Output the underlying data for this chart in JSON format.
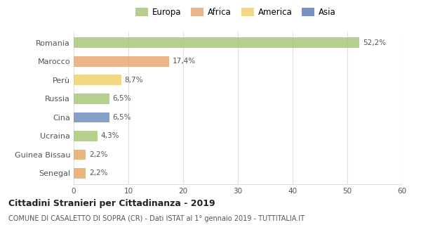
{
  "categories": [
    "Romania",
    "Marocco",
    "Perù",
    "Russia",
    "Cina",
    "Ucraina",
    "Guinea Bissau",
    "Senegal"
  ],
  "values": [
    52.2,
    17.4,
    8.7,
    6.5,
    6.5,
    4.3,
    2.2,
    2.2
  ],
  "labels": [
    "52,2%",
    "17,4%",
    "8,7%",
    "6,5%",
    "6,5%",
    "4,3%",
    "2,2%",
    "2,2%"
  ],
  "bar_colors": [
    "#a8c87a",
    "#e8a878",
    "#f0d070",
    "#a8c87a",
    "#7090c0",
    "#a8c87a",
    "#e8a868",
    "#e8a868"
  ],
  "legend": [
    {
      "label": "Europa",
      "color": "#a8c87a"
    },
    {
      "label": "Africa",
      "color": "#e8a878"
    },
    {
      "label": "America",
      "color": "#f0d070"
    },
    {
      "label": "Asia",
      "color": "#6080b8"
    }
  ],
  "xlim": [
    0,
    60
  ],
  "xticks": [
    0,
    10,
    20,
    30,
    40,
    50,
    60
  ],
  "title": "Cittadini Stranieri per Cittadinanza - 2019",
  "subtitle": "COMUNE DI CASALETTO DI SOPRA (CR) - Dati ISTAT al 1° gennaio 2019 - TUTTITALIA.IT",
  "background_color": "#ffffff",
  "grid_color": "#e0e0e0",
  "bar_height": 0.55
}
